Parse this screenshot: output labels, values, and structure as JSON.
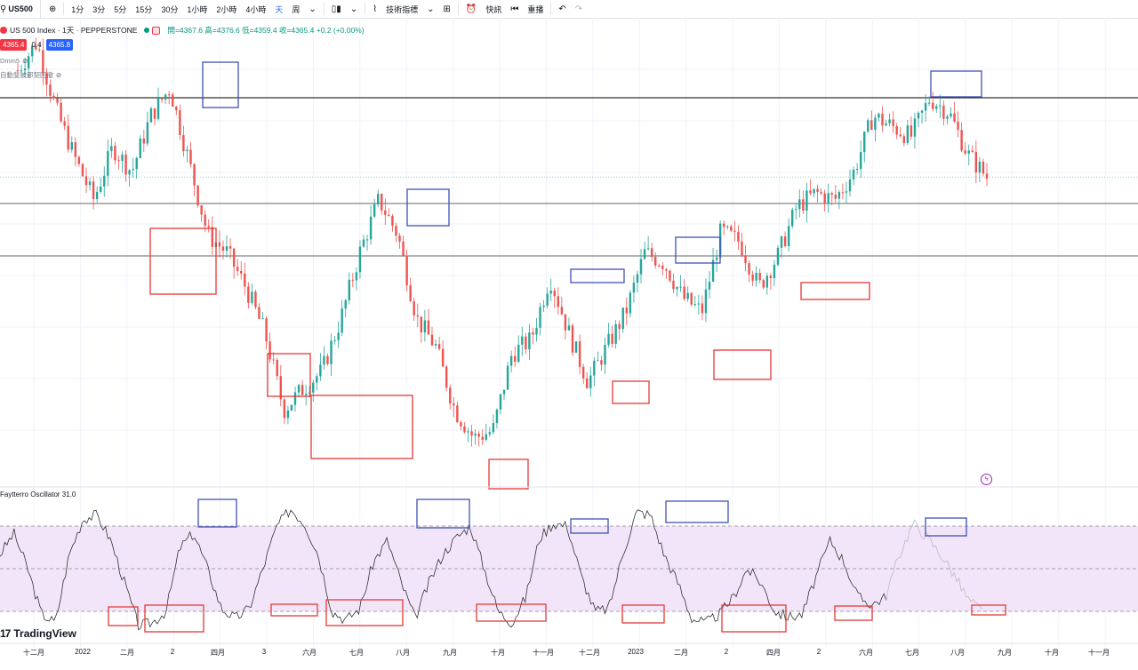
{
  "toolbar": {
    "symbol": "US500",
    "intervals": [
      "1分",
      "3分",
      "5分",
      "15分",
      "30分",
      "1小時",
      "2小時",
      "4小時",
      "天",
      "周"
    ],
    "active_interval": "天",
    "indicators_label": "技術指標",
    "alert_label": "快訊",
    "replay_label": "重播"
  },
  "legend": {
    "title": "US 500 Index · 1天 · PEPPERSTONE",
    "ohlc": "開=4367.6 高=4376.6 低=4359.4 收=4365.4 +0.2 (+0.00%)"
  },
  "price_box": {
    "sell": "4365.4",
    "spread": "0.4",
    "buy": "4365.8"
  },
  "indicators": {
    "line1": "Dmm5",
    "line2": "自動斐波那契回撤"
  },
  "oscillator": {
    "label": "Faytterro Oscillator  31.0"
  },
  "branding": {
    "name": "TradingView",
    "mark": "17"
  },
  "x_axis": {
    "labels": [
      "十二月",
      "2022",
      "二月",
      "2",
      "四月",
      "3",
      "六月",
      "七月",
      "八月",
      "九月",
      "十月",
      "十一月",
      "十二月",
      "2023",
      "二月",
      "2",
      "四月",
      "2",
      "六月",
      "七月",
      "八月",
      "九月",
      "十月",
      "十一月"
    ]
  },
  "colors": {
    "up": "#26a69a",
    "down": "#ef5350",
    "box_blue": "#3f51b5",
    "box_red": "#e53935",
    "osc_band": "#f3e5f9"
  },
  "chart_data": {
    "type": "candlestick",
    "title": "US 500 Index · 1天 · PEPPERSTONE",
    "last_close": 4365.4,
    "price_path": [
      4670,
      4750,
      4560,
      4420,
      4300,
      4450,
      4380,
      4540,
      4620,
      4410,
      4200,
      4150,
      4050,
      3920,
      3700,
      3760,
      3810,
      3960,
      4150,
      4300,
      4200,
      3960,
      3880,
      3700,
      3620,
      3640,
      3860,
      3900,
      4080,
      3920,
      3780,
      3880,
      3980,
      4150,
      4120,
      4020,
      3980,
      4210,
      4180,
      4050,
      4140,
      4280,
      4320,
      4300,
      4380,
      4540,
      4510,
      4480,
      4590,
      4550,
      4430,
      4365
    ],
    "horizontal_lines": 3,
    "oscillator_band": [
      20,
      80
    ],
    "oscillator_path": [
      60,
      75,
      50,
      18,
      12,
      60,
      85,
      88,
      70,
      40,
      10,
      12,
      20,
      65,
      75,
      50,
      22,
      15,
      22,
      50,
      80,
      92,
      82,
      60,
      20,
      14,
      22,
      55,
      70,
      40,
      15,
      40,
      60,
      72,
      80,
      50,
      20,
      12,
      30,
      72,
      82,
      80,
      45,
      20,
      22,
      60,
      90,
      88,
      60,
      40,
      15,
      12,
      18,
      30,
      50,
      40,
      20,
      16,
      18,
      45,
      70,
      55,
      30,
      25,
      30,
      60,
      82,
      72,
      60,
      45,
      28,
      20
    ]
  }
}
